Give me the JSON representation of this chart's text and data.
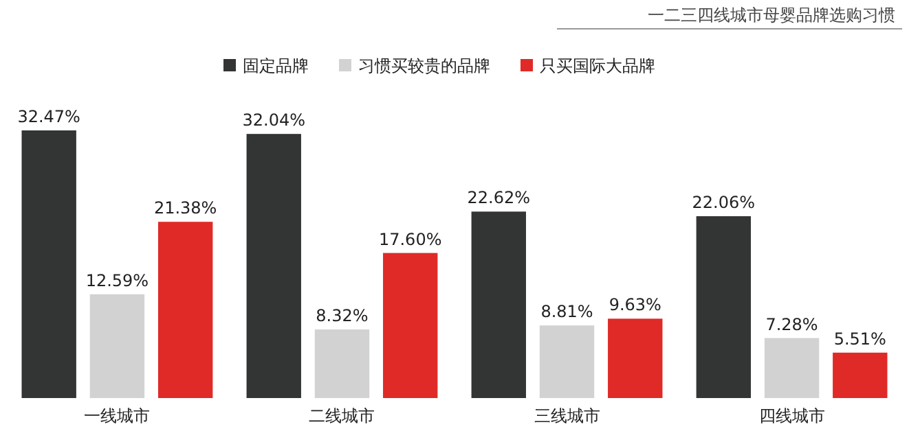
{
  "chart_data": {
    "type": "bar",
    "title": "一二三四线城市母婴品牌选购习惯",
    "categories": [
      "一线城市",
      "二线城市",
      "三线城市",
      "四线城市"
    ],
    "series": [
      {
        "name": "固定品牌",
        "color": "#333535",
        "values": [
          32.47,
          32.04,
          22.62,
          22.06
        ],
        "value_labels": [
          "32.47%",
          "32.04%",
          "22.62%",
          "22.06%"
        ]
      },
      {
        "name": "习惯买较贵的品牌",
        "color": "#d2d2d2",
        "values": [
          12.59,
          8.32,
          8.81,
          7.28
        ],
        "value_labels": [
          "12.59%",
          "8.32%",
          "8.81%",
          "7.28%"
        ]
      },
      {
        "name": "只买国际大品牌",
        "color": "#e02a27",
        "values": [
          21.38,
          17.6,
          9.63,
          5.51
        ],
        "value_labels": [
          "21.38%",
          "17.60%",
          "9.63%",
          "5.51%"
        ]
      }
    ],
    "legend": "top"
  }
}
